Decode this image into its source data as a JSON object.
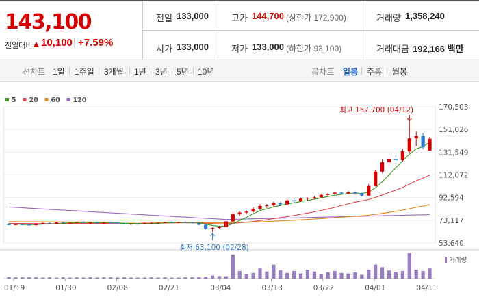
{
  "summary": {
    "price": "143,100",
    "change_label": "전일대비",
    "change_arrow": "▲",
    "change_value": "10,100",
    "change_pct": "+7.59%",
    "up_color": "#d60000"
  },
  "stats": {
    "prev_close_label": "전일",
    "prev_close": "133,000",
    "open_label": "시가",
    "open": "133,000",
    "high_label": "고가",
    "high": "144,700",
    "upper_limit": "(상한가 172,900)",
    "low_label": "저가",
    "low": "133,000",
    "lower_limit": "(하한가 93,100)",
    "volume_label": "거래량",
    "volume": "1,358,240",
    "amount_label": "거래대금",
    "amount": "192,166 백만"
  },
  "periods": {
    "line_label": "선차트",
    "line_items": [
      "1일",
      "1주일",
      "3개월",
      "1년",
      "3년",
      "5년",
      "10년"
    ],
    "candle_label": "봉차트",
    "candle_items": [
      "일봉",
      "주봉",
      "월봉"
    ],
    "candle_selected": "일봉"
  },
  "chart_data": {
    "type": "candlestick",
    "legend": [
      {
        "name": "5",
        "color": "#3a9a1e"
      },
      {
        "name": "20",
        "color": "#e04545"
      },
      {
        "name": "60",
        "color": "#e38a1a"
      },
      {
        "name": "120",
        "color": "#9a63c2"
      }
    ],
    "yticks": [
      "170,503",
      "151,026",
      "131,549",
      "112,072",
      "92,594",
      "73,117",
      "53,640"
    ],
    "ylim": [
      53640,
      170503
    ],
    "xticks": [
      "01/19",
      "01/30",
      "02/08",
      "02/21",
      "03/04",
      "03/13",
      "03/22",
      "04/01",
      "04/11"
    ],
    "max_annotation": "최고 157,700 (04/12)",
    "min_annotation": "최저 63,100 (02/28)",
    "volume_label": "거래량",
    "candles": [
      {
        "o": 69800,
        "h": 70800,
        "l": 68800,
        "c": 69000
      },
      {
        "o": 69000,
        "h": 70200,
        "l": 68700,
        "c": 69700
      },
      {
        "o": 69600,
        "h": 70100,
        "l": 68900,
        "c": 69200
      },
      {
        "o": 69200,
        "h": 69900,
        "l": 68600,
        "c": 68900
      },
      {
        "o": 68900,
        "h": 70600,
        "l": 68700,
        "c": 70200
      },
      {
        "o": 70200,
        "h": 71200,
        "l": 69600,
        "c": 70800
      },
      {
        "o": 70800,
        "h": 71300,
        "l": 69900,
        "c": 70200
      },
      {
        "o": 70200,
        "h": 71700,
        "l": 70000,
        "c": 71300
      },
      {
        "o": 71400,
        "h": 72100,
        "l": 70600,
        "c": 70900
      },
      {
        "o": 70900,
        "h": 71500,
        "l": 70200,
        "c": 71000
      },
      {
        "o": 71000,
        "h": 71900,
        "l": 70500,
        "c": 71600
      },
      {
        "o": 71600,
        "h": 72300,
        "l": 70700,
        "c": 70900
      },
      {
        "o": 70600,
        "h": 71900,
        "l": 69400,
        "c": 71400
      },
      {
        "o": 71400,
        "h": 72100,
        "l": 70300,
        "c": 70500
      },
      {
        "o": 70500,
        "h": 71400,
        "l": 69800,
        "c": 71100
      },
      {
        "o": 71100,
        "h": 71800,
        "l": 70600,
        "c": 70900
      },
      {
        "o": 70900,
        "h": 71300,
        "l": 70000,
        "c": 70400
      },
      {
        "o": 70400,
        "h": 70900,
        "l": 69300,
        "c": 69700
      },
      {
        "o": 69700,
        "h": 70600,
        "l": 69000,
        "c": 70000
      },
      {
        "o": 70000,
        "h": 70700,
        "l": 69400,
        "c": 69900
      },
      {
        "o": 69900,
        "h": 71100,
        "l": 69600,
        "c": 70700
      },
      {
        "o": 70700,
        "h": 71500,
        "l": 70200,
        "c": 70800
      },
      {
        "o": 70800,
        "h": 71500,
        "l": 70300,
        "c": 71000
      },
      {
        "o": 71000,
        "h": 71800,
        "l": 70600,
        "c": 71600
      },
      {
        "o": 71600,
        "h": 72200,
        "l": 70900,
        "c": 71200
      },
      {
        "o": 71200,
        "h": 71900,
        "l": 70700,
        "c": 71500
      },
      {
        "o": 71500,
        "h": 72100,
        "l": 71000,
        "c": 71300
      },
      {
        "o": 71300,
        "h": 71800,
        "l": 70300,
        "c": 70600
      },
      {
        "o": 70600,
        "h": 71000,
        "l": 68900,
        "c": 69200
      },
      {
        "o": 69200,
        "h": 69500,
        "l": 65200,
        "c": 65800
      },
      {
        "o": 65800,
        "h": 67100,
        "l": 63100,
        "c": 66500
      },
      {
        "o": 66500,
        "h": 68000,
        "l": 65800,
        "c": 67400
      },
      {
        "o": 67400,
        "h": 72600,
        "l": 67000,
        "c": 72100
      },
      {
        "o": 72100,
        "h": 80400,
        "l": 71500,
        "c": 78400
      },
      {
        "o": 78400,
        "h": 80800,
        "l": 76900,
        "c": 79800
      },
      {
        "o": 79800,
        "h": 81500,
        "l": 78400,
        "c": 80600
      },
      {
        "o": 80600,
        "h": 84300,
        "l": 79700,
        "c": 82900
      },
      {
        "o": 82900,
        "h": 87000,
        "l": 81800,
        "c": 85400
      },
      {
        "o": 85400,
        "h": 87000,
        "l": 83700,
        "c": 85900
      },
      {
        "o": 85900,
        "h": 89100,
        "l": 84700,
        "c": 88100
      },
      {
        "o": 88100,
        "h": 89100,
        "l": 85600,
        "c": 86700
      },
      {
        "o": 86700,
        "h": 91300,
        "l": 86000,
        "c": 90200
      },
      {
        "o": 90200,
        "h": 91900,
        "l": 88500,
        "c": 89600
      },
      {
        "o": 89600,
        "h": 92600,
        "l": 88900,
        "c": 91700
      },
      {
        "o": 91700,
        "h": 92800,
        "l": 90100,
        "c": 92300
      },
      {
        "o": 92300,
        "h": 93800,
        "l": 91100,
        "c": 92800
      },
      {
        "o": 92800,
        "h": 95600,
        "l": 92100,
        "c": 94900
      },
      {
        "o": 94900,
        "h": 96600,
        "l": 93800,
        "c": 95900
      },
      {
        "o": 95900,
        "h": 97800,
        "l": 95100,
        "c": 96900
      },
      {
        "o": 96900,
        "h": 97800,
        "l": 95300,
        "c": 96100
      },
      {
        "o": 96100,
        "h": 98100,
        "l": 95500,
        "c": 97300
      },
      {
        "o": 97300,
        "h": 97900,
        "l": 95800,
        "c": 96200
      },
      {
        "o": 96200,
        "h": 96800,
        "l": 93500,
        "c": 94300
      },
      {
        "o": 94300,
        "h": 104200,
        "l": 94000,
        "c": 102500
      },
      {
        "o": 102500,
        "h": 116600,
        "l": 102100,
        "c": 114800
      },
      {
        "o": 114800,
        "h": 125500,
        "l": 113700,
        "c": 123000
      },
      {
        "o": 123000,
        "h": 127400,
        "l": 119900,
        "c": 125700
      },
      {
        "o": 125700,
        "h": 129000,
        "l": 121900,
        "c": 124800
      },
      {
        "o": 124800,
        "h": 134400,
        "l": 123200,
        "c": 132300
      },
      {
        "o": 132300,
        "h": 157700,
        "l": 130400,
        "c": 143400
      },
      {
        "o": 143400,
        "h": 149100,
        "l": 136700,
        "c": 145500
      },
      {
        "o": 145500,
        "h": 147900,
        "l": 134200,
        "c": 135700
      },
      {
        "o": 133000,
        "h": 144700,
        "l": 133000,
        "c": 143100
      }
    ],
    "volumes": [
      0.06,
      0.05,
      0.05,
      0.05,
      0.05,
      0.04,
      0.05,
      0.04,
      0.05,
      0.04,
      0.05,
      0.04,
      0.05,
      0.04,
      0.05,
      0.05,
      0.04,
      0.05,
      0.04,
      0.04,
      0.04,
      0.05,
      0.04,
      0.05,
      0.04,
      0.04,
      0.05,
      0.05,
      0.05,
      0.08,
      0.12,
      0.1,
      0.09,
      0.95,
      0.3,
      0.18,
      0.22,
      0.4,
      0.28,
      0.55,
      0.33,
      0.22,
      0.3,
      0.2,
      0.35,
      0.28,
      0.18,
      0.25,
      0.3,
      0.22,
      0.2,
      0.24,
      0.15,
      0.35,
      0.55,
      0.45,
      0.32,
      0.25,
      0.3,
      1.0,
      0.35,
      0.3,
      0.4
    ]
  }
}
